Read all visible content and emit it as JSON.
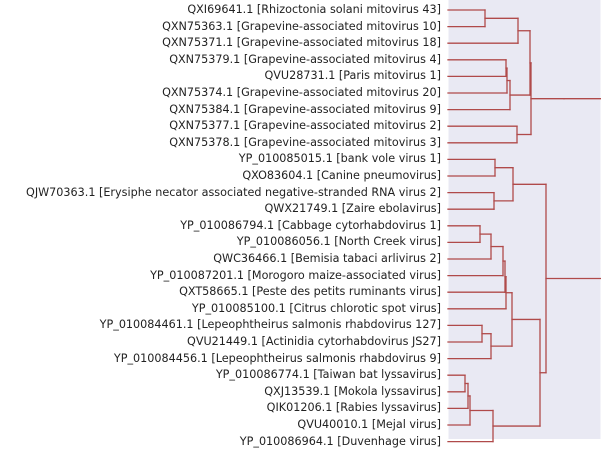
{
  "leaves": [
    "QXI69641.1  [Rhizoctonia solani mitovirus 43]",
    "QXN75363.1  [Grapevine-associated mitovirus 10]",
    "QXN75371.1  [Grapevine-associated mitovirus 18]",
    "QXN75379.1  [Grapevine-associated mitovirus 4]",
    "QVU28731.1  [Paris mitovirus 1]",
    "QXN75374.1  [Grapevine-associated mitovirus 20]",
    "QXN75384.1  [Grapevine-associated mitovirus 9]",
    "QXN75377.1  [Grapevine-associated mitovirus 2]",
    "QXN75378.1  [Grapevine-associated mitovirus 3]",
    "YP_010085015.1  [bank vole virus 1]",
    "QXO83604.1  [Canine pneumovirus]",
    "QJW70363.1  [Erysiphe necator associated negative-stranded RNA virus 2]",
    "QWX21749.1  [Zaire ebolavirus]",
    "YP_010086794.1  [Cabbage cytorhabdovirus 1]",
    "YP_010086056.1  [North Creek virus]",
    "QWC36466.1  [Bemisia tabaci arlivirus 2]",
    "YP_010087201.1  [Morogoro maize-associated virus]",
    "QXT58665.1  [Peste des petits ruminants virus]",
    "YP_010085100.1  [Citrus chlorotic spot virus]",
    "YP_010084461.1  [Lepeophtheirus salmonis rhabdovirus 127]",
    "QVU21449.1  [Actinidia cytorhabdovirus JS27]",
    "YP_010084456.1  [Lepeophtheirus salmonis rhabdovirus 9]",
    "YP_010086774.1  [Taiwan bat lyssavirus]",
    "QXJ13539.1  [Mokola lyssavirus]",
    "QIK01206.1  [Rabies lyssavirus]",
    "QVU40010.1  [Mejal virus]",
    "YP_010086964.1  [Duvenhage virus]"
  ],
  "style": {
    "background": "#e9e9f3",
    "gridline": "#ffffff",
    "branch": "#b04a4a",
    "label_color": "#222222"
  }
}
